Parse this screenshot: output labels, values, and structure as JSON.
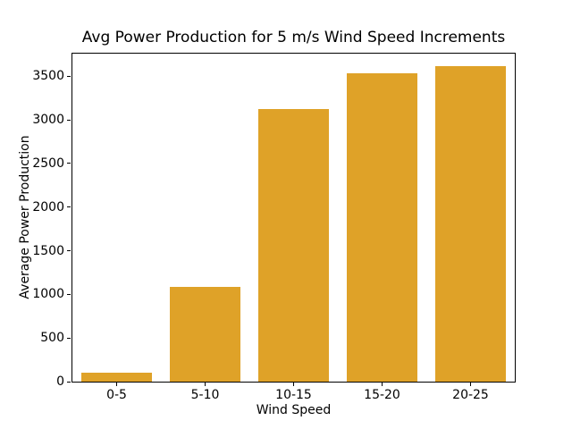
{
  "figure": {
    "background": "#ffffff",
    "text_color": "#000000"
  },
  "chart_data": {
    "type": "bar",
    "title": "Avg Power Production for 5 m/s Wind Speed Increments",
    "xlabel": "Wind Speed",
    "ylabel": "Average Power Production",
    "categories": [
      "0-5",
      "5-10",
      "10-15",
      "15-20",
      "20-25"
    ],
    "values": [
      100,
      1090,
      3130,
      3530,
      3620
    ],
    "yticks": [
      0,
      500,
      1000,
      1500,
      2000,
      2500,
      3000,
      3500
    ],
    "ylim": [
      0,
      3760
    ],
    "bar_color": "#dfa228",
    "axis_color": "#000000",
    "grid": false,
    "legend": "none"
  }
}
